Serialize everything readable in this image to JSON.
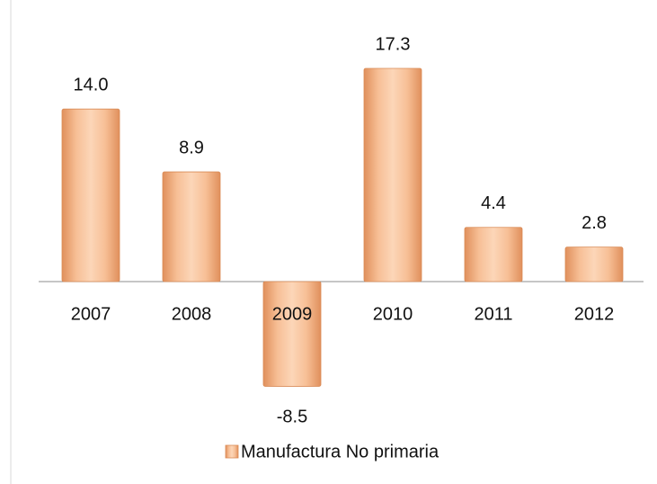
{
  "chart_data": {
    "type": "bar",
    "categories": [
      "2007",
      "2008",
      "2009",
      "2010",
      "2011",
      "2012"
    ],
    "series": [
      {
        "name": "Manufactura No primaria",
        "color": "#f2a774",
        "values": [
          14.0,
          8.9,
          -8.5,
          17.3,
          4.4,
          2.8
        ],
        "value_labels": [
          "14.0",
          "8.9",
          "-8.5",
          "17.3",
          "4.4",
          "2.8"
        ]
      }
    ],
    "legend": "bottom"
  }
}
